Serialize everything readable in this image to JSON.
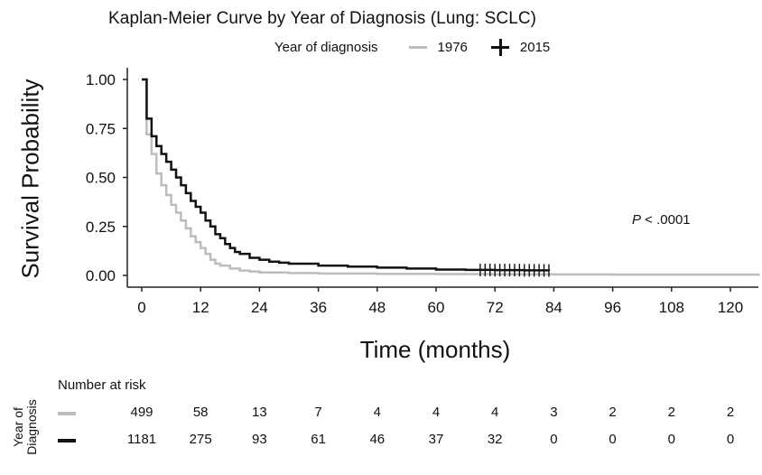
{
  "chart_data": {
    "type": "line",
    "title": "Kaplan-Meier Curve by Year of Diagnosis (Lung: SCLC)",
    "legend_title": "Year of diagnosis",
    "legend_position": "top",
    "xlabel": "Time (months)",
    "ylabel": "Survival Probability",
    "xlim": [
      0,
      126
    ],
    "ylim": [
      0,
      1.0
    ],
    "xticks": [
      0,
      12,
      24,
      36,
      48,
      60,
      72,
      84,
      96,
      108,
      120
    ],
    "yticks": [
      0.0,
      0.25,
      0.5,
      0.75,
      1.0
    ],
    "ytick_labels": [
      "0.00",
      "0.25",
      "0.50",
      "0.75",
      "1.00"
    ],
    "annotation": {
      "prefix": "P",
      "text": " < .0001"
    },
    "series": [
      {
        "name": "1976",
        "color": "#bdbdbd",
        "x": [
          0,
          1,
          2,
          3,
          4,
          5,
          6,
          7,
          8,
          9,
          10,
          11,
          12,
          13,
          14,
          15,
          16,
          18,
          20,
          22,
          24,
          30,
          36,
          48,
          60,
          72,
          84,
          96,
          108,
          120,
          126
        ],
        "y": [
          1.0,
          0.72,
          0.62,
          0.52,
          0.46,
          0.41,
          0.36,
          0.32,
          0.28,
          0.24,
          0.2,
          0.17,
          0.14,
          0.11,
          0.08,
          0.06,
          0.05,
          0.035,
          0.025,
          0.02,
          0.015,
          0.012,
          0.01,
          0.008,
          0.007,
          0.006,
          0.005,
          0.004,
          0.004,
          0.004,
          0.004
        ]
      },
      {
        "name": "2015",
        "color": "#111111",
        "censor_marks": [
          69,
          70,
          71,
          72,
          73,
          74,
          75,
          76,
          77,
          78,
          79,
          80,
          81,
          82,
          83
        ],
        "x": [
          0,
          1,
          2,
          3,
          4,
          5,
          6,
          7,
          8,
          9,
          10,
          11,
          12,
          13,
          14,
          15,
          16,
          17,
          18,
          19,
          20,
          22,
          24,
          26,
          28,
          30,
          36,
          42,
          48,
          54,
          60,
          66,
          72,
          78,
          83
        ],
        "y": [
          1.0,
          0.8,
          0.71,
          0.66,
          0.62,
          0.58,
          0.54,
          0.5,
          0.46,
          0.42,
          0.38,
          0.35,
          0.32,
          0.28,
          0.25,
          0.21,
          0.19,
          0.16,
          0.14,
          0.12,
          0.11,
          0.09,
          0.08,
          0.07,
          0.065,
          0.06,
          0.05,
          0.045,
          0.04,
          0.035,
          0.03,
          0.028,
          0.027,
          0.026,
          0.025
        ]
      }
    ],
    "risk_table": {
      "title": "Number at risk",
      "side_label": [
        "Year of",
        "Diagnosis"
      ],
      "times": [
        0,
        12,
        24,
        36,
        48,
        60,
        72,
        84,
        96,
        108,
        120
      ],
      "rows": [
        {
          "color": "#bdbdbd",
          "values": [
            "499",
            "58",
            "13",
            "7",
            "4",
            "4",
            "4",
            "3",
            "2",
            "2",
            "2"
          ]
        },
        {
          "color": "#111111",
          "values": [
            "1181",
            "275",
            "93",
            "61",
            "46",
            "37",
            "32",
            "0",
            "0",
            "0",
            "0"
          ]
        }
      ]
    }
  }
}
